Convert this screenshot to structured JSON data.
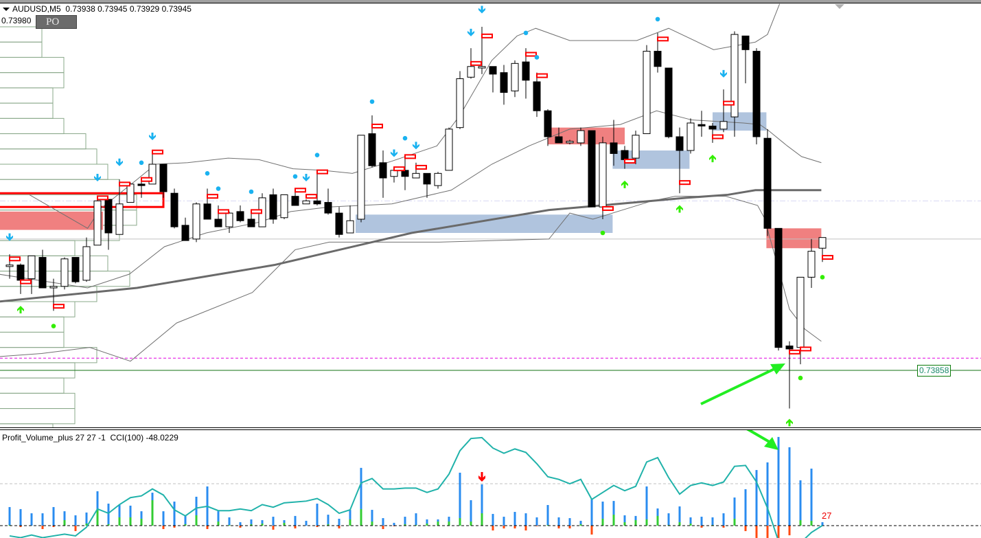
{
  "header": {
    "menu_icon": "triangle-down-icon",
    "symbol": "AUDUSD,M5",
    "open": "0.73938",
    "high": "0.73945",
    "low": "0.73929",
    "close": "0.73945"
  },
  "overlay": {
    "price_text": "0.73980",
    "box_text": "PO"
  },
  "price_label": "0.73858",
  "subwindow": {
    "indicator_title": "Profit_Volume_plus 27 27 -1",
    "cci_title": "CCI(100) -48.0229",
    "last_value_label": "27"
  },
  "colors": {
    "bull_body": "#ffffff",
    "bear_body": "#000000",
    "supply_zone": "#f08080",
    "demand_zone": "#b0c4de",
    "signal_down": "#1ab2f0",
    "signal_up": "#33ee00",
    "marker": "#ff0000",
    "volume": "#2a8cf0",
    "buy_volume": "#33cc33",
    "sell_volume": "#ff4a10",
    "cci": "#20b2aa",
    "annotation_arrow": "#22ee22"
  },
  "chart_data": {
    "type": "candlestick",
    "symbol": "AUDUSD",
    "timeframe": "M5",
    "candles_ohlc": [
      [
        0.73926,
        0.73934,
        0.73918,
        0.73927
      ],
      [
        0.73927,
        0.73928,
        0.73908,
        0.73917
      ],
      [
        0.73918,
        0.73933,
        0.73908,
        0.73933
      ],
      [
        0.73932,
        0.73937,
        0.73912,
        0.73912
      ],
      [
        0.73912,
        0.73918,
        0.73897,
        0.73913
      ],
      [
        0.73913,
        0.73932,
        0.73911,
        0.73931
      ],
      [
        0.73932,
        0.73932,
        0.73915,
        0.73916
      ],
      [
        0.73917,
        0.73945,
        0.73916,
        0.73939
      ],
      [
        0.7394,
        0.7397,
        0.7394,
        0.73969
      ],
      [
        0.7397,
        0.7397,
        0.73937,
        0.73948
      ],
      [
        0.73947,
        0.73983,
        0.73947,
        0.73967
      ],
      [
        0.73968,
        0.73981,
        0.73968,
        0.7398
      ],
      [
        0.7398,
        0.73984,
        0.73971,
        0.73979
      ],
      [
        0.7398,
        0.74002,
        0.7398,
        0.73993
      ],
      [
        0.73993,
        0.73993,
        0.73971,
        0.73975
      ],
      [
        0.73974,
        0.73977,
        0.73951,
        0.73952
      ],
      [
        0.73953,
        0.73958,
        0.73943,
        0.73943
      ],
      [
        0.73944,
        0.73968,
        0.73942,
        0.73967
      ],
      [
        0.73967,
        0.73977,
        0.73957,
        0.73957
      ],
      [
        0.73957,
        0.73966,
        0.73952,
        0.73952
      ],
      [
        0.73952,
        0.73962,
        0.73948,
        0.73961
      ],
      [
        0.73962,
        0.73966,
        0.73955,
        0.73956
      ],
      [
        0.73957,
        0.73963,
        0.73952,
        0.73952
      ],
      [
        0.73952,
        0.73974,
        0.73952,
        0.73971
      ],
      [
        0.73973,
        0.73977,
        0.73954,
        0.73957
      ],
      [
        0.73958,
        0.73973,
        0.73957,
        0.73973
      ],
      [
        0.73972,
        0.73976,
        0.73966,
        0.73966
      ],
      [
        0.73967,
        0.7397,
        0.73967,
        0.73969
      ],
      [
        0.73969,
        0.73989,
        0.73966,
        0.73967
      ],
      [
        0.73968,
        0.73977,
        0.7396,
        0.73961
      ],
      [
        0.73961,
        0.73965,
        0.73945,
        0.73947
      ],
      [
        0.73948,
        0.73966,
        0.73948,
        0.73956
      ],
      [
        0.73957,
        0.74012,
        0.73955,
        0.74012
      ],
      [
        0.74013,
        0.74025,
        0.73991,
        0.73992
      ],
      [
        0.73994,
        0.74002,
        0.73971,
        0.73984
      ],
      [
        0.73985,
        0.7399,
        0.73981,
        0.73989
      ],
      [
        0.73989,
        0.73999,
        0.73976,
        0.73985
      ],
      [
        0.73984,
        0.73994,
        0.73984,
        0.73987
      ],
      [
        0.73987,
        0.73987,
        0.73971,
        0.7398
      ],
      [
        0.73979,
        0.73988,
        0.73977,
        0.73987
      ],
      [
        0.73989,
        0.74017,
        0.73989,
        0.74016
      ],
      [
        0.74017,
        0.74054,
        0.74016,
        0.74049
      ],
      [
        0.7405,
        0.74069,
        0.74049,
        0.74057
      ],
      [
        0.74056,
        0.74083,
        0.74052,
        0.74057
      ],
      [
        0.74057,
        0.74057,
        0.7404,
        0.74052
      ],
      [
        0.74053,
        0.74058,
        0.74032,
        0.7404
      ],
      [
        0.74041,
        0.74061,
        0.74037,
        0.74059
      ],
      [
        0.7406,
        0.74069,
        0.74036,
        0.74048
      ],
      [
        0.74047,
        0.74053,
        0.74024,
        0.74028
      ],
      [
        0.74028,
        0.74029,
        0.74005,
        0.74011
      ],
      [
        0.74011,
        0.74017,
        0.74007,
        0.74007
      ],
      [
        0.74007,
        0.74009,
        0.74006,
        0.74008
      ],
      [
        0.74007,
        0.74017,
        0.74005,
        0.74015
      ],
      [
        0.74015,
        0.74015,
        0.73965,
        0.73965
      ],
      [
        0.73965,
        0.74011,
        0.73957,
        0.74007
      ],
      [
        0.74007,
        0.74022,
        0.73992,
        0.74
      ],
      [
        0.74002,
        0.74005,
        0.7399,
        0.73996
      ],
      [
        0.73997,
        0.74015,
        0.73993,
        0.74012
      ],
      [
        0.74013,
        0.74071,
        0.74013,
        0.74067
      ],
      [
        0.74067,
        0.74079,
        0.74053,
        0.74057
      ],
      [
        0.74056,
        0.74056,
        0.7401,
        0.74011
      ],
      [
        0.74011,
        0.74017,
        0.73974,
        0.74002
      ],
      [
        0.74002,
        0.74023,
        0.74,
        0.7402
      ],
      [
        0.74019,
        0.74028,
        0.74011,
        0.74018
      ],
      [
        0.74018,
        0.7402,
        0.74007,
        0.74016
      ],
      [
        0.74016,
        0.74042,
        0.74014,
        0.74021
      ],
      [
        0.74024,
        0.7408,
        0.74011,
        0.74078
      ],
      [
        0.74077,
        0.74077,
        0.74046,
        0.74068
      ],
      [
        0.74067,
        0.74069,
        0.74006,
        0.74011
      ],
      [
        0.7401,
        0.74016,
        0.73946,
        0.73951
      ],
      [
        0.73951,
        0.73951,
        0.73871,
        0.73873
      ],
      [
        0.73874,
        0.73877,
        0.73833,
        0.73872
      ],
      [
        0.73873,
        0.73919,
        0.73862,
        0.73919
      ],
      [
        0.73919,
        0.73944,
        0.73912,
        0.73936
      ],
      [
        0.73938,
        0.73945,
        0.73929,
        0.73945
      ]
    ],
    "moving_average": [
      [
        -1,
        0.73903
      ],
      [
        11.6,
        0.73912
      ],
      [
        24.1,
        0.73927
      ],
      [
        36.6,
        0.73948
      ],
      [
        49.1,
        0.73963
      ],
      [
        55.4,
        0.73967
      ],
      [
        61.6,
        0.73971
      ],
      [
        65.4,
        0.73973
      ],
      [
        67.9,
        0.73976
      ],
      [
        73.9,
        0.73976
      ]
    ],
    "bollinger_upper": [
      [
        1.8,
        0.73973
      ],
      [
        7.1,
        0.73951
      ],
      [
        8.3,
        0.73964
      ],
      [
        11.6,
        0.73983
      ],
      [
        13.3,
        0.73993
      ],
      [
        16.2,
        0.73994
      ],
      [
        19.9,
        0.73997
      ],
      [
        22.7,
        0.73996
      ],
      [
        25.8,
        0.7399
      ],
      [
        28.5,
        0.73989
      ],
      [
        31.2,
        0.73987
      ],
      [
        34.8,
        0.73995
      ],
      [
        38.9,
        0.74005
      ],
      [
        41,
        0.74025
      ],
      [
        43.9,
        0.74061
      ],
      [
        46.2,
        0.74077
      ],
      [
        47.9,
        0.74082
      ],
      [
        51,
        0.74074
      ],
      [
        57.1,
        0.74074
      ],
      [
        60,
        0.74082
      ],
      [
        64.1,
        0.74068
      ],
      [
        67.9,
        0.74073
      ],
      [
        69,
        0.74078
      ],
      [
        70.1,
        0.74098
      ]
    ],
    "bollinger_middle": [
      [
        -1,
        0.73921
      ],
      [
        7.1,
        0.73912
      ],
      [
        10.9,
        0.73921
      ],
      [
        14.1,
        0.73939
      ],
      [
        17.9,
        0.73948
      ],
      [
        22.7,
        0.73955
      ],
      [
        25.6,
        0.73962
      ],
      [
        29.1,
        0.73965
      ],
      [
        34.8,
        0.73967
      ],
      [
        40.2,
        0.73976
      ],
      [
        43.9,
        0.73993
      ],
      [
        47.3,
        0.74005
      ],
      [
        51,
        0.74016
      ],
      [
        55.6,
        0.74019
      ],
      [
        58.9,
        0.74028
      ],
      [
        62.1,
        0.74022
      ],
      [
        66.8,
        0.7402
      ],
      [
        68.3,
        0.74019
      ],
      [
        69.1,
        0.74015
      ],
      [
        70.8,
        0.74005
      ],
      [
        72.1,
        0.73998
      ],
      [
        73.9,
        0.73994
      ]
    ],
    "bollinger_lower": [
      [
        -1,
        0.73867
      ],
      [
        2.9,
        0.73869
      ],
      [
        7.3,
        0.73873
      ],
      [
        11,
        0.73864
      ],
      [
        15.2,
        0.73889
      ],
      [
        22.1,
        0.73909
      ],
      [
        26,
        0.73937
      ],
      [
        29.1,
        0.73942
      ],
      [
        39.1,
        0.73942
      ],
      [
        49.1,
        0.73944
      ],
      [
        51,
        0.73961
      ],
      [
        53.1,
        0.73957
      ],
      [
        58.5,
        0.73969
      ],
      [
        60.6,
        0.73972
      ],
      [
        65.2,
        0.73972
      ],
      [
        68.1,
        0.73966
      ],
      [
        68.7,
        0.73958
      ],
      [
        69.6,
        0.73935
      ],
      [
        70.4,
        0.73914
      ],
      [
        71,
        0.73898
      ],
      [
        72.4,
        0.73885
      ],
      [
        73.9,
        0.73877
      ]
    ],
    "zones": [
      {
        "kind": "outline",
        "from": -1,
        "to": 14,
        "high": 0.73974,
        "low": 0.73965
      },
      {
        "kind": "supply",
        "from": -1,
        "to": 8.5,
        "high": 0.73962,
        "low": 0.7395
      },
      {
        "kind": "demand",
        "from": 31.5,
        "to": 54.9,
        "high": 0.7396,
        "low": 0.73948
      },
      {
        "kind": "supply",
        "from": 49,
        "to": 56,
        "high": 0.74017,
        "low": 0.74006
      },
      {
        "kind": "demand",
        "from": 54.9,
        "to": 61.9,
        "high": 0.74002,
        "low": 0.7399
      },
      {
        "kind": "demand",
        "from": 64,
        "to": 68.9,
        "high": 0.74027,
        "low": 0.74015
      },
      {
        "kind": "supply",
        "from": 68.9,
        "to": 73.9,
        "high": 0.73951,
        "low": 0.73938
      }
    ],
    "horizontal_lines": [
      {
        "price": 0.73944,
        "style": "solid",
        "color": "#c0c0c0"
      },
      {
        "price": 0.73969,
        "style": "dashdot",
        "color": "#d8d8f4"
      },
      {
        "price": 0.73866,
        "style": "dashed",
        "color": "#e000e0"
      },
      {
        "price": 0.73858,
        "style": "solid",
        "color": "#107010"
      }
    ],
    "volume_profile": {
      "top_price": 0.74083,
      "step": 0.0001,
      "volumes": [
        62,
        62,
        94,
        94,
        78,
        78,
        94,
        126,
        142,
        158,
        175,
        200,
        200,
        175,
        110,
        158,
        190,
        142,
        110,
        94,
        94,
        142,
        110,
        94,
        110,
        110,
        78
      ]
    },
    "red_markers": [
      [
        0,
        0.73931
      ],
      [
        1,
        0.73916
      ],
      [
        4,
        0.739
      ],
      [
        8,
        0.73971
      ],
      [
        10,
        0.7398
      ],
      [
        12,
        0.73983
      ],
      [
        13,
        0.74001
      ],
      [
        18,
        0.73972
      ],
      [
        19,
        0.73962
      ],
      [
        22,
        0.73962
      ],
      [
        26,
        0.73976
      ],
      [
        27,
        0.73972
      ],
      [
        28,
        0.73988
      ],
      [
        33,
        0.74018
      ],
      [
        35,
        0.7399
      ],
      [
        36,
        0.73998
      ],
      [
        37,
        0.73991
      ],
      [
        42,
        0.74059
      ],
      [
        43,
        0.74077
      ],
      [
        47,
        0.74065
      ],
      [
        48,
        0.74051
      ],
      [
        54,
        0.73964
      ],
      [
        56,
        0.73995
      ],
      [
        59,
        0.74075
      ],
      [
        61,
        0.73981
      ],
      [
        64,
        0.74011
      ],
      [
        65,
        0.74033
      ],
      [
        71,
        0.7387
      ],
      [
        72,
        0.73872
      ],
      [
        74,
        0.73932
      ]
    ],
    "down_arrows": [
      [
        0,
        0.73945
      ],
      [
        8,
        0.73984
      ],
      [
        10,
        0.73994
      ],
      [
        13,
        0.74011
      ],
      [
        27,
        0.73984
      ],
      [
        35,
        0.74
      ],
      [
        37,
        0.74005
      ],
      [
        42,
        0.74079
      ],
      [
        43,
        0.74094
      ],
      [
        65,
        0.74052
      ]
    ],
    "down_dots": [
      [
        12,
        0.73994
      ],
      [
        18,
        0.73987
      ],
      [
        19,
        0.73977
      ],
      [
        22,
        0.73975
      ],
      [
        26,
        0.73985
      ],
      [
        28,
        0.73999
      ],
      [
        33,
        0.74034
      ],
      [
        36,
        0.7401
      ],
      [
        47,
        0.74079
      ],
      [
        48,
        0.74063
      ],
      [
        59,
        0.74088
      ]
    ],
    "up_arrows": [
      [
        1,
        0.73898
      ],
      [
        56,
        0.7398
      ],
      [
        61,
        0.73964
      ],
      [
        64,
        0.73997
      ],
      [
        71,
        0.73824
      ]
    ],
    "up_dots": [
      [
        4,
        0.73887
      ],
      [
        54,
        0.73948
      ],
      [
        72,
        0.73853
      ],
      [
        74,
        0.73919
      ]
    ],
    "volume": {
      "total": [
        146,
        130,
        97,
        97,
        146,
        113,
        81,
        103,
        270,
        173,
        162,
        157,
        113,
        259,
        113,
        189,
        76,
        227,
        308,
        113,
        65,
        27,
        49,
        43,
        70,
        43,
        76,
        38,
        173,
        86,
        54,
        124,
        454,
        124,
        59,
        22,
        70,
        97,
        49,
        49,
        70,
        416,
        200,
        324,
        92,
        70,
        108,
        97,
        65,
        162,
        65,
        59,
        38,
        211,
        189,
        194,
        81,
        76,
        308,
        135,
        97,
        151,
        65,
        70,
        65,
        97,
        221,
        286,
        437,
        497,
        697,
        616,
        356,
        448,
        27
      ],
      "buy": [
        5,
        0,
        0,
        0,
        0,
        43,
        0,
        16,
        124,
        11,
        65,
        65,
        54,
        200,
        0,
        0,
        11,
        81,
        0,
        32,
        5,
        0,
        11,
        16,
        0,
        22,
        0,
        0,
        0,
        11,
        0,
        49,
        130,
        32,
        0,
        0,
        11,
        5,
        16,
        32,
        32,
        59,
        32,
        97,
        0,
        0,
        0,
        0,
        0,
        5,
        0,
        0,
        11,
        0,
        54,
        86,
        27,
        43,
        49,
        76,
        5,
        27,
        16,
        0,
        5,
        0,
        54,
        0,
        0,
        0,
        0,
        0,
        43,
        38,
        0
      ],
      "sell": [
        0,
        11,
        0,
        27,
        11,
        0,
        43,
        0,
        0,
        0,
        0,
        0,
        0,
        0,
        27,
        16,
        0,
        0,
        27,
        0,
        0,
        16,
        0,
        0,
        32,
        0,
        22,
        0,
        11,
        0,
        22,
        0,
        0,
        0,
        27,
        5,
        0,
        0,
        0,
        0,
        0,
        0,
        0,
        0,
        38,
        22,
        22,
        38,
        5,
        0,
        22,
        22,
        0,
        70,
        0,
        0,
        0,
        0,
        0,
        0,
        0,
        0,
        0,
        16,
        0,
        16,
        0,
        43,
        97,
        97,
        97,
        76,
        0,
        0,
        0
      ],
      "signal_arrow_index": 43
    },
    "cci": [
      -60,
      -62,
      -59,
      -62,
      -60,
      -58,
      -60,
      -50,
      -29,
      -34,
      -24,
      -16,
      -14,
      -6,
      -13,
      -30,
      -37,
      -28,
      -26,
      -31,
      -31,
      -29,
      -31,
      -24,
      -27,
      -22,
      -21,
      -20,
      -17,
      -24,
      -34,
      -30,
      1,
      6,
      -6,
      -6,
      -5,
      -5,
      -10,
      -6,
      11,
      38,
      52,
      53,
      41,
      35,
      40,
      36,
      23,
      8,
      5,
      0,
      5,
      -18,
      -10,
      -2,
      -8,
      -3,
      25,
      30,
      7,
      -12,
      -2,
      1,
      -2,
      2,
      20,
      21,
      2,
      -28,
      -66,
      -76,
      -68,
      -56,
      -48
    ]
  }
}
